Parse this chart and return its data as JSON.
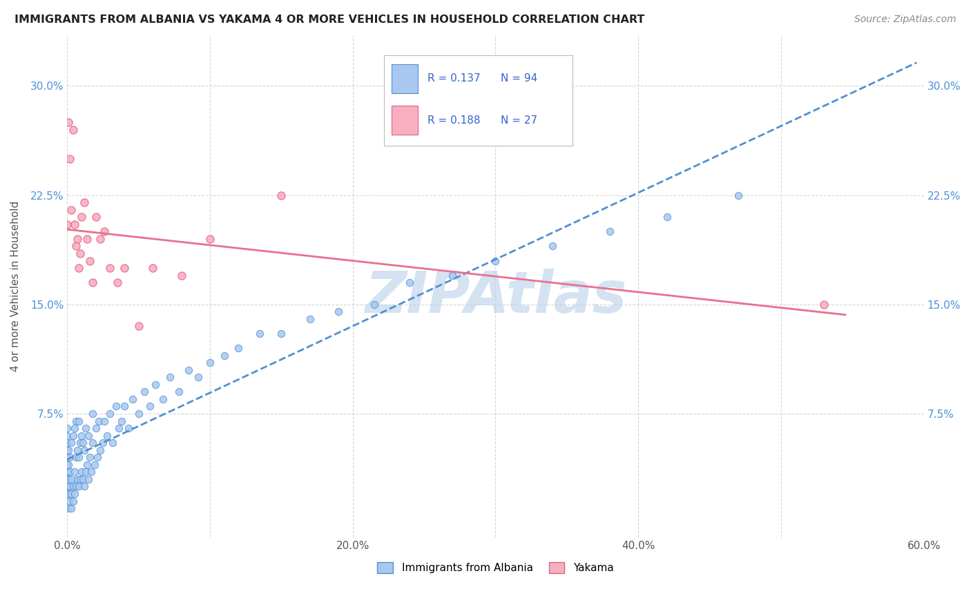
{
  "title": "IMMIGRANTS FROM ALBANIA VS YAKAMA 4 OR MORE VEHICLES IN HOUSEHOLD CORRELATION CHART",
  "source_text": "Source: ZipAtlas.com",
  "ylabel": "4 or more Vehicles in Household",
  "xlim": [
    0.0,
    0.6
  ],
  "ylim": [
    -0.01,
    0.335
  ],
  "xtick_labels": [
    "0.0%",
    "",
    "20.0%",
    "",
    "40.0%",
    "",
    "60.0%"
  ],
  "xtick_vals": [
    0.0,
    0.1,
    0.2,
    0.3,
    0.4,
    0.5,
    0.6
  ],
  "ytick_labels": [
    "7.5%",
    "15.0%",
    "22.5%",
    "30.0%"
  ],
  "ytick_vals": [
    0.075,
    0.15,
    0.225,
    0.3
  ],
  "background_color": "#ffffff",
  "grid_color": "#cccccc",
  "watermark_text": "ZIPAtlas",
  "watermark_color": "#b8d0e8",
  "series1_name": "Immigrants from Albania",
  "series1_color": "#a8c8f0",
  "series1_edge_color": "#5090d0",
  "series1_R": 0.137,
  "series1_N": 94,
  "series1_line_color": "#5090d0",
  "series1_line_style": "--",
  "series2_name": "Yakama",
  "series2_color": "#f8b0c0",
  "series2_edge_color": "#e06080",
  "series2_R": 0.188,
  "series2_N": 27,
  "series2_line_color": "#e87090",
  "series2_line_style": "-",
  "legend_color": "#3366cc",
  "albania_x": [
    0.0,
    0.0,
    0.0,
    0.0,
    0.0,
    0.0,
    0.0,
    0.0,
    0.0,
    0.0,
    0.001,
    0.001,
    0.001,
    0.001,
    0.001,
    0.002,
    0.002,
    0.002,
    0.002,
    0.003,
    0.003,
    0.003,
    0.003,
    0.004,
    0.004,
    0.004,
    0.005,
    0.005,
    0.005,
    0.006,
    0.006,
    0.006,
    0.007,
    0.007,
    0.008,
    0.008,
    0.008,
    0.009,
    0.009,
    0.01,
    0.01,
    0.011,
    0.011,
    0.012,
    0.012,
    0.013,
    0.013,
    0.014,
    0.015,
    0.015,
    0.016,
    0.017,
    0.018,
    0.018,
    0.019,
    0.02,
    0.021,
    0.022,
    0.023,
    0.025,
    0.026,
    0.028,
    0.03,
    0.032,
    0.034,
    0.036,
    0.038,
    0.04,
    0.043,
    0.046,
    0.05,
    0.054,
    0.058,
    0.062,
    0.067,
    0.072,
    0.078,
    0.085,
    0.092,
    0.1,
    0.11,
    0.12,
    0.135,
    0.15,
    0.17,
    0.19,
    0.215,
    0.24,
    0.27,
    0.3,
    0.34,
    0.38,
    0.42,
    0.47
  ],
  "albania_y": [
    0.02,
    0.025,
    0.03,
    0.035,
    0.04,
    0.045,
    0.05,
    0.055,
    0.06,
    0.065,
    0.01,
    0.02,
    0.03,
    0.04,
    0.05,
    0.015,
    0.025,
    0.035,
    0.045,
    0.01,
    0.02,
    0.03,
    0.055,
    0.015,
    0.025,
    0.06,
    0.02,
    0.035,
    0.065,
    0.025,
    0.045,
    0.07,
    0.03,
    0.05,
    0.025,
    0.045,
    0.07,
    0.03,
    0.055,
    0.035,
    0.06,
    0.03,
    0.055,
    0.025,
    0.05,
    0.035,
    0.065,
    0.04,
    0.03,
    0.06,
    0.045,
    0.035,
    0.055,
    0.075,
    0.04,
    0.065,
    0.045,
    0.07,
    0.05,
    0.055,
    0.07,
    0.06,
    0.075,
    0.055,
    0.08,
    0.065,
    0.07,
    0.08,
    0.065,
    0.085,
    0.075,
    0.09,
    0.08,
    0.095,
    0.085,
    0.1,
    0.09,
    0.105,
    0.1,
    0.11,
    0.115,
    0.12,
    0.13,
    0.13,
    0.14,
    0.145,
    0.15,
    0.165,
    0.17,
    0.18,
    0.19,
    0.2,
    0.21,
    0.225
  ],
  "yakama_x": [
    0.0,
    0.001,
    0.002,
    0.003,
    0.004,
    0.005,
    0.006,
    0.007,
    0.008,
    0.009,
    0.01,
    0.012,
    0.014,
    0.016,
    0.018,
    0.02,
    0.023,
    0.026,
    0.03,
    0.035,
    0.04,
    0.05,
    0.06,
    0.08,
    0.1,
    0.15,
    0.53
  ],
  "yakama_y": [
    0.205,
    0.275,
    0.25,
    0.215,
    0.27,
    0.205,
    0.19,
    0.195,
    0.175,
    0.185,
    0.21,
    0.22,
    0.195,
    0.18,
    0.165,
    0.21,
    0.195,
    0.2,
    0.175,
    0.165,
    0.175,
    0.135,
    0.175,
    0.17,
    0.195,
    0.225,
    0.15
  ]
}
